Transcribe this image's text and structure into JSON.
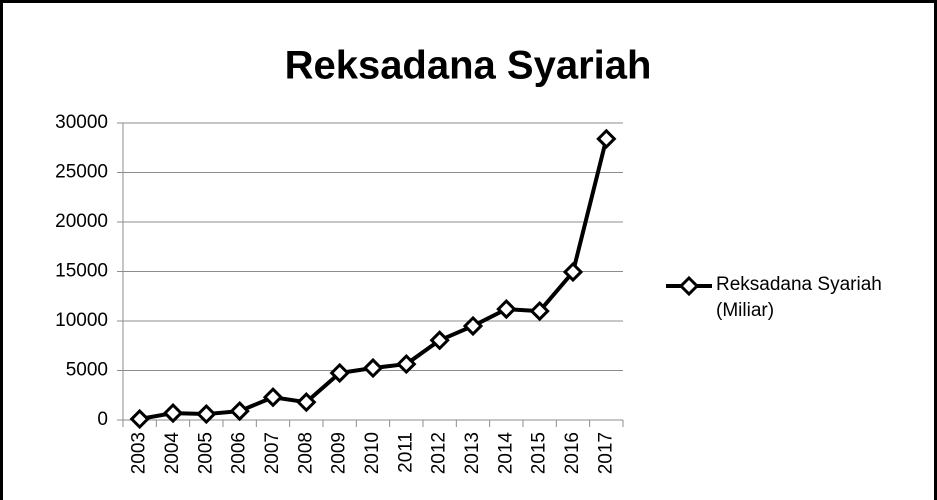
{
  "chart_data": {
    "type": "line",
    "title": "Reksadana Syariah",
    "categories": [
      "2003",
      "2004",
      "2005",
      "2006",
      "2007",
      "2008",
      "2009",
      "2010",
      "2011",
      "2012",
      "2013",
      "2014",
      "2015",
      "2016",
      "2017"
    ],
    "series": [
      {
        "name": "Reksadana Syariah (Miliar)",
        "color": "#000000",
        "values": [
          100,
          700,
          600,
          900,
          2300,
          1800,
          4750,
          5250,
          5650,
          8050,
          9500,
          11200,
          11000,
          14950,
          28400
        ]
      }
    ],
    "ylim": [
      0,
      30000
    ],
    "yticks": [
      0,
      5000,
      10000,
      15000,
      20000,
      25000,
      30000
    ],
    "grid": true,
    "legend": "right"
  }
}
